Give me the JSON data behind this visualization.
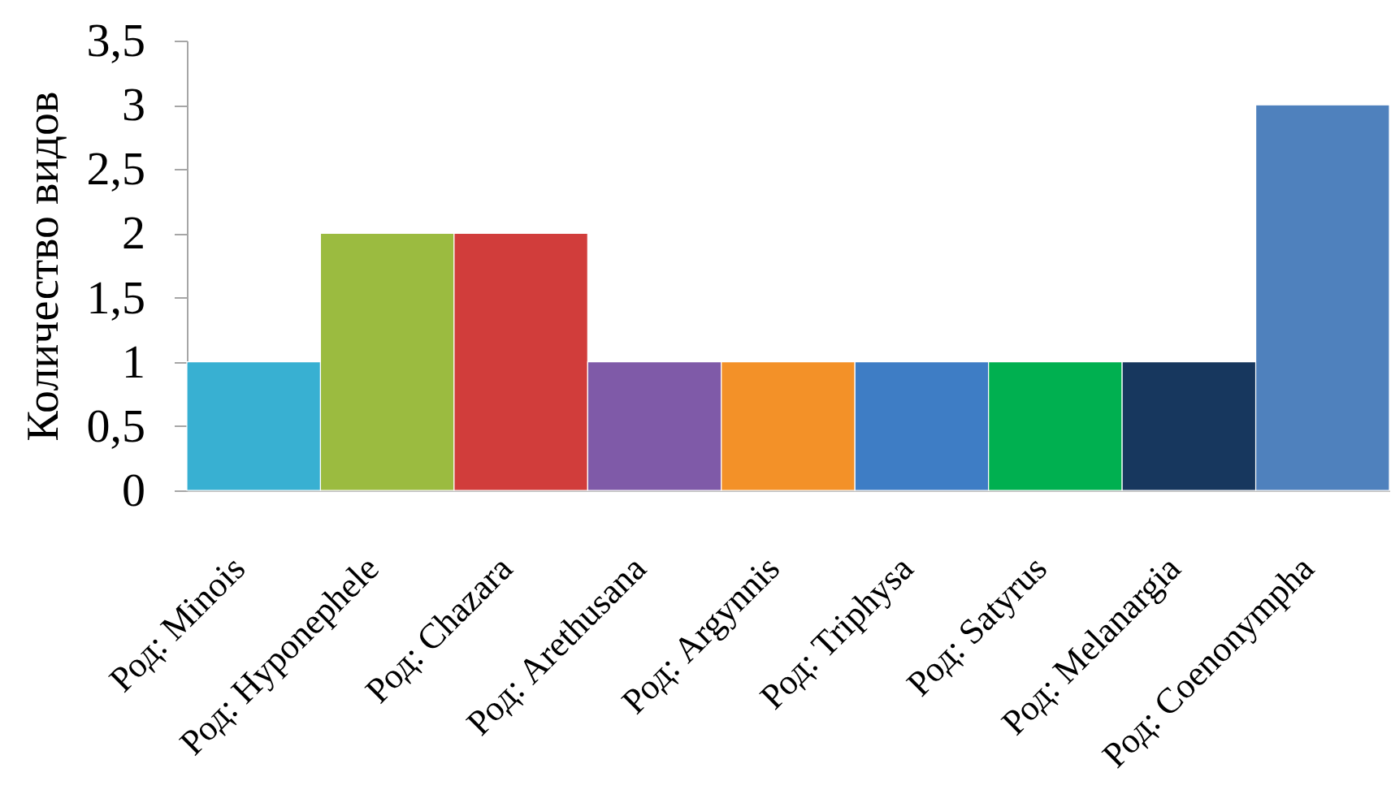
{
  "chart_data": {
    "type": "bar",
    "ylabel": "Количество видов",
    "categories": [
      "Род: Minois",
      "Род: Hyponephele",
      "Род: Chazara",
      "Род: Arethusana",
      "Род: Argynnis",
      "Род: Triphysa",
      "Род: Satyrus",
      "Род: Melanargia",
      "Род: Coenonympha"
    ],
    "values": [
      1,
      2,
      2,
      1,
      1,
      1,
      1,
      1,
      3
    ],
    "colors": [
      "#38b0d2",
      "#9bbb40",
      "#d13d3b",
      "#7f5aa8",
      "#f39128",
      "#3e7dc5",
      "#00b050",
      "#17375e",
      "#4f81bd"
    ],
    "ylim": [
      0,
      3.5
    ],
    "yticks": [
      0,
      {
        "value": 0.5,
        "label": "0,5"
      },
      1,
      {
        "value": 1.5,
        "label": "1,5"
      },
      2,
      {
        "value": 2.5,
        "label": "2,5"
      },
      3,
      {
        "value": 3.5,
        "label": "3,5"
      }
    ],
    "grid": false
  }
}
